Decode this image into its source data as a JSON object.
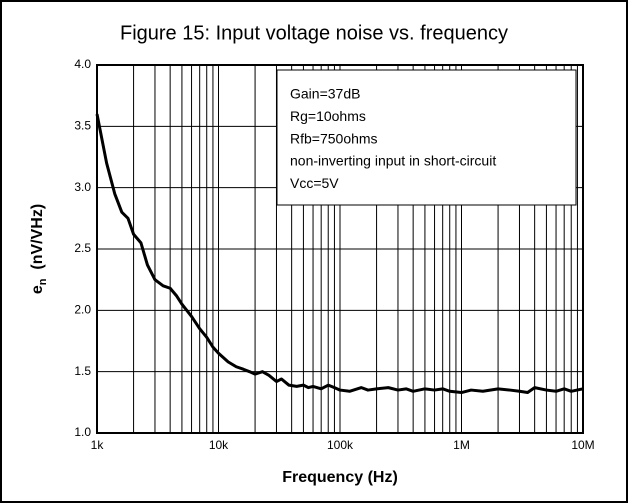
{
  "chart_data": {
    "type": "line",
    "title": "Figure 15: Input voltage noise vs. frequency",
    "xlabel": "Frequency  (Hz)",
    "ylabel_symbol": "e",
    "ylabel_subscript": "n",
    "ylabel_unit": "  (nV/VHz)",
    "xscale": "log",
    "xlim": [
      1000,
      10000000
    ],
    "ylim": [
      1.0,
      4.0
    ],
    "xticks": [
      {
        "value": 1000,
        "label": "1k"
      },
      {
        "value": 10000,
        "label": "10k"
      },
      {
        "value": 100000,
        "label": "100k"
      },
      {
        "value": 1000000,
        "label": "1M"
      },
      {
        "value": 10000000,
        "label": "10M"
      }
    ],
    "xminor_ticks": [
      2000,
      3000,
      4000,
      5000,
      6000,
      7000,
      8000,
      9000,
      20000,
      30000,
      40000,
      50000,
      60000,
      70000,
      80000,
      90000,
      200000,
      300000,
      400000,
      500000,
      600000,
      700000,
      800000,
      900000,
      2000000,
      3000000,
      4000000,
      5000000,
      6000000,
      7000000,
      8000000,
      9000000
    ],
    "yticks": [
      {
        "value": 1.0,
        "label": "1.0"
      },
      1.5,
      {
        "value": 2.0,
        "label": "2.0"
      },
      2.5,
      {
        "value": 3.0,
        "label": "3.0"
      },
      3.5,
      {
        "value": 4.0,
        "label": "4.0"
      }
    ],
    "grid": true,
    "annotation": [
      "Gain=37dB",
      "Rg=10ohms",
      "Rfb=750ohms",
      "non-inverting input in short-circuit",
      "Vcc=5V"
    ],
    "series": [
      {
        "color": "#000000",
        "x": [
          1000,
          1200,
          1400,
          1600,
          1800,
          2000,
          2300,
          2600,
          3000,
          3500,
          4000,
          4500,
          5000,
          6000,
          7000,
          8000,
          9000,
          10000,
          12000,
          14000,
          16000,
          18000,
          20000,
          23000,
          26000,
          30000,
          33000,
          38000,
          44000,
          50000,
          55000,
          60000,
          70000,
          80000,
          90000,
          100000,
          120000,
          150000,
          170000,
          200000,
          250000,
          300000,
          350000,
          400000,
          500000,
          600000,
          700000,
          800000,
          1000000,
          1200000,
          1500000,
          2000000,
          2500000,
          3000000,
          3500000,
          4000000,
          5000000,
          6000000,
          7000000,
          8000000,
          10000000
        ],
        "values": [
          3.6,
          3.2,
          2.95,
          2.8,
          2.75,
          2.62,
          2.55,
          2.37,
          2.25,
          2.2,
          2.18,
          2.12,
          2.05,
          1.95,
          1.85,
          1.78,
          1.7,
          1.65,
          1.58,
          1.54,
          1.52,
          1.5,
          1.48,
          1.5,
          1.47,
          1.42,
          1.44,
          1.39,
          1.38,
          1.39,
          1.37,
          1.38,
          1.36,
          1.39,
          1.37,
          1.35,
          1.34,
          1.37,
          1.35,
          1.36,
          1.37,
          1.35,
          1.36,
          1.34,
          1.36,
          1.35,
          1.36,
          1.34,
          1.33,
          1.35,
          1.34,
          1.36,
          1.35,
          1.34,
          1.33,
          1.37,
          1.35,
          1.34,
          1.36,
          1.34,
          1.36
        ]
      }
    ]
  }
}
